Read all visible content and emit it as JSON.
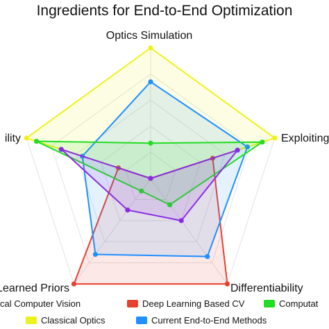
{
  "chart_data": {
    "type": "radar",
    "title": "Ingredients for End-to-End Optimization",
    "axes": [
      "Optics Simulation",
      "Exploiting",
      "Differentiability",
      "Learned Priors",
      "ility"
    ],
    "axis_range": [
      0,
      1
    ],
    "grid": true,
    "legend_position": "bottom",
    "series": [
      {
        "name": "cal Computer Vision",
        "color": "#8b2be2",
        "values": [
          0.0,
          0.7,
          0.4,
          0.3,
          0.72
        ]
      },
      {
        "name": "Deep Learning Based CV",
        "color": "#e8402f",
        "values": [
          0.0,
          0.5,
          1.0,
          1.0,
          0.26
        ]
      },
      {
        "name": "Computat",
        "color": "#22dd22",
        "values": [
          0.27,
          0.9,
          0.25,
          0.12,
          0.92
        ]
      },
      {
        "name": "Classical Optics",
        "color": "#eef21c",
        "values": [
          1.0,
          1.0,
          0.0,
          0.0,
          1.0
        ]
      },
      {
        "name": "Current End-to-End Methods",
        "color": "#1e90ff",
        "values": [
          0.74,
          0.78,
          0.74,
          0.72,
          0.55
        ]
      }
    ],
    "legend": [
      {
        "label": "cal Computer Vision",
        "series": 0
      },
      {
        "label": "Deep Learning Based CV",
        "series": 1
      },
      {
        "label": "Computat",
        "series": 2
      },
      {
        "label": "Classical Optics",
        "series": 3
      },
      {
        "label": "Current End-to-End Methods",
        "series": 4
      }
    ]
  }
}
